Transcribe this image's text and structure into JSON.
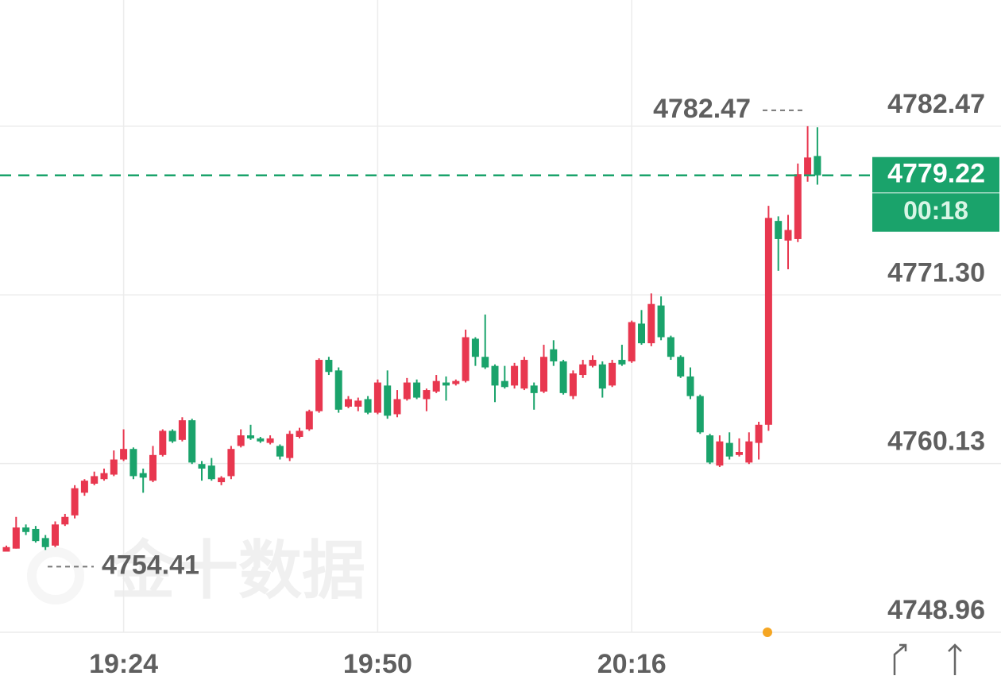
{
  "chart_data": {
    "type": "candlestick",
    "categories": [
      null,
      null,
      null,
      null,
      null,
      null,
      null,
      null,
      null,
      null,
      null,
      null,
      "19:24",
      null,
      null,
      null,
      null,
      null,
      null,
      null,
      null,
      null,
      null,
      null,
      null,
      null,
      null,
      null,
      null,
      null,
      null,
      null,
      null,
      null,
      null,
      null,
      null,
      null,
      "19:50",
      null,
      null,
      null,
      null,
      null,
      null,
      null,
      null,
      null,
      null,
      null,
      null,
      null,
      null,
      null,
      null,
      null,
      null,
      null,
      null,
      null,
      null,
      null,
      null,
      null,
      "20:16",
      null,
      null,
      null,
      null,
      null,
      null,
      null,
      null,
      null,
      null,
      null,
      null,
      null,
      null,
      null,
      null,
      null,
      null,
      null
    ],
    "open": [
      4754.3,
      4754.5,
      4755.9,
      4755.8,
      4755.2,
      4754.7,
      4756.1,
      4756.7,
      4758.2,
      4758.8,
      4759.1,
      4759.4,
      4760.4,
      4761.1,
      4759.5,
      4759.0,
      4760.7,
      4762.3,
      4761.7,
      4763.0,
      4760.1,
      4760.0,
      4758.9,
      4759.3,
      4761.3,
      4762.0,
      4761.8,
      4761.5,
      4761.3,
      4760.5,
      4761.9,
      4762.4,
      4763.6,
      4767.0,
      4766.3,
      4763.9,
      4763.9,
      4764.4,
      4763.5,
      4765.3,
      4763.4,
      4764.4,
      4765.5,
      4764.4,
      4764.9,
      4765.5,
      4765.4,
      4765.6,
      4768.4,
      4767.2,
      4766.6,
      4765.6,
      4765.3,
      4765.1,
      4765.3,
      4764.9,
      4767.7,
      4766.9,
      4764.6,
      4766.0,
      4766.6,
      4766.7,
      4765.3,
      4767.0,
      4766.9,
      4769.4,
      4768.1,
      4770.6,
      4768.5,
      4767.2,
      4765.9,
      4764.6,
      4762.0,
      4760.0,
      4761.5,
      4760.7,
      4760.2,
      4761.5,
      4762.7,
      4776.2,
      4774.9,
      4775.0,
      4779.2,
      4780.5
    ],
    "high": [
      4754.7,
      4756.6,
      4756.1,
      4756.0,
      4755.4,
      4756.3,
      4756.8,
      4758.7,
      4759.1,
      4759.6,
      4759.8,
      4761.0,
      4762.4,
      4761.2,
      4759.8,
      4761.3,
      4762.4,
      4762.4,
      4763.2,
      4763.1,
      4760.3,
      4760.5,
      4759.3,
      4761.3,
      4762.4,
      4762.7,
      4761.9,
      4762.0,
      4761.4,
      4762.3,
      4762.5,
      4763.7,
      4767.1,
      4767.2,
      4766.5,
      4764.6,
      4764.5,
      4764.6,
      4765.7,
      4766.3,
      4765.0,
      4765.8,
      4765.7,
      4765.1,
      4766.0,
      4765.9,
      4765.7,
      4769.0,
      4768.5,
      4770.0,
      4766.7,
      4766.6,
      4766.8,
      4767.2,
      4765.5,
      4768.0,
      4768.3,
      4767.0,
      4766.3,
      4767.0,
      4767.3,
      4766.9,
      4767.0,
      4768.0,
      4769.6,
      4770.3,
      4771.4,
      4771.2,
      4768.6,
      4767.3,
      4766.5,
      4764.7,
      4762.1,
      4762.0,
      4762.2,
      4761.8,
      4762.2,
      4762.9,
      4777.2,
      4776.5,
      4776.6,
      4780.0,
      4782.47,
      4782.4
    ],
    "low": [
      4754.5,
      4754.5,
      4755.4,
      4754.9,
      4754.41,
      4754.6,
      4756.0,
      4756.5,
      4758.0,
      4758.7,
      4759.0,
      4759.3,
      4760.3,
      4759.1,
      4758.2,
      4758.9,
      4760.6,
      4761.5,
      4761.6,
      4760.1,
      4759.0,
      4759.0,
      4758.7,
      4759.1,
      4761.2,
      4761.7,
      4761.5,
      4761.4,
      4760.4,
      4760.3,
      4761.8,
      4762.3,
      4763.5,
      4766.0,
      4763.5,
      4763.8,
      4763.6,
      4763.4,
      4763.4,
      4763.1,
      4763.2,
      4764.3,
      4764.4,
      4763.6,
      4764.8,
      4764.3,
      4765.3,
      4765.5,
      4766.6,
      4766.4,
      4764.2,
      4765.1,
      4765.1,
      4765.0,
      4763.7,
      4764.8,
      4766.6,
      4764.7,
      4764.4,
      4765.8,
      4766.5,
      4764.5,
      4765.2,
      4766.6,
      4766.8,
      4768.0,
      4767.9,
      4768.3,
      4767.0,
      4765.8,
      4764.4,
      4762.1,
      4760.1,
      4759.9,
      4760.4,
      4760.6,
      4760.1,
      4760.4,
      4762.3,
      4772.9,
      4773.0,
      4774.8,
      4778.8,
      4778.6
    ],
    "close": [
      4754.6,
      4755.9,
      4755.6,
      4755.0,
      4754.6,
      4756.1,
      4756.6,
      4758.5,
      4759.0,
      4759.3,
      4759.5,
      4760.4,
      4761.1,
      4759.3,
      4759.2,
      4760.7,
      4762.3,
      4761.6,
      4763.0,
      4760.2,
      4759.8,
      4759.1,
      4759.2,
      4761.1,
      4762.0,
      4761.8,
      4761.6,
      4761.8,
      4760.6,
      4762.1,
      4762.3,
      4763.6,
      4767.0,
      4766.2,
      4763.7,
      4764.4,
      4764.3,
      4763.5,
      4765.5,
      4763.3,
      4764.4,
      4765.5,
      4764.5,
      4765.0,
      4765.6,
      4765.3,
      4765.6,
      4768.5,
      4767.2,
      4766.5,
      4765.3,
      4765.2,
      4766.6,
      4767.0,
      4764.8,
      4767.2,
      4766.9,
      4764.8,
      4766.1,
      4766.7,
      4767.0,
      4765.1,
      4766.8,
      4766.7,
      4769.5,
      4768.1,
      4770.7,
      4768.5,
      4767.2,
      4765.9,
      4764.6,
      4762.2,
      4760.2,
      4761.6,
      4760.6,
      4760.9,
      4761.6,
      4762.7,
      4776.4,
      4775.0,
      4775.6,
      4779.3,
      4780.4,
      4779.22
    ],
    "up_color": "#e8374f",
    "down_color": "#1aa36b",
    "ylim": [
      4748.96,
      4790.83
    ],
    "yticks": [
      4782.47,
      {
        "value": 4771.3,
        "label": "4771.30"
      },
      4760.13,
      4748.96
    ],
    "grid": true,
    "high_marker": {
      "value": 4782.47,
      "index": 82
    },
    "low_marker": {
      "value": 4754.41,
      "index": 4
    },
    "last_price": 4779.22,
    "countdown": "00:18",
    "last_price_color": "#1aa36b",
    "watermark": "金十数据"
  }
}
